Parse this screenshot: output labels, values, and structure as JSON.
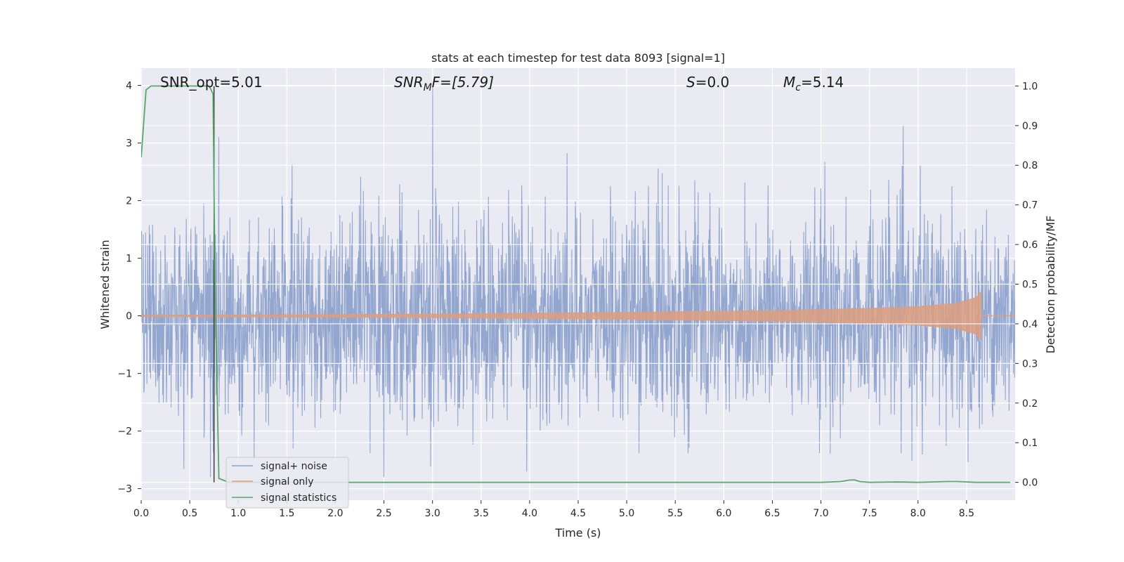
{
  "chart_data": {
    "type": "line",
    "title": "stats at each timestep for test data 8093 [signal=1]",
    "xlabel": "Time (s)",
    "ylabel": "Whitened strain",
    "ylabel_right": "Detection probability/MF",
    "xlim": [
      0.0,
      9.0
    ],
    "ylim": [
      -3.2,
      4.3
    ],
    "ylim_right": [
      -0.045,
      1.045
    ],
    "x_ticks": [
      "0.0",
      "0.5",
      "1.0",
      "1.5",
      "2.0",
      "2.5",
      "3.0",
      "3.5",
      "4.0",
      "4.5",
      "5.0",
      "5.5",
      "6.0",
      "6.5",
      "7.0",
      "7.5",
      "8.0",
      "8.5"
    ],
    "y_ticks": [
      "4",
      "3",
      "2",
      "1",
      "0",
      "−1",
      "−2",
      "−3"
    ],
    "y_ticks_right": [
      "1.0",
      "0.9",
      "0.8",
      "0.7",
      "0.6",
      "0.5",
      "0.4",
      "0.3",
      "0.2",
      "0.1",
      "0.0"
    ],
    "grid": true,
    "legend_position": "lower-left",
    "annotations": {
      "snr_opt": "SNR_opt=5.01",
      "snr_mf_main": "SNR",
      "snr_mf_sub": "M",
      "snr_mf_rest": "F=[5.79]",
      "s_main": "S",
      "s_rest": "=0.0",
      "mc_main": "M",
      "mc_sub": "c",
      "mc_rest": "=5.14"
    },
    "series": [
      {
        "name": "signal+ noise",
        "color": "#8da2cc",
        "description_values": {
          "x_range": [
            0.0,
            9.0
          ],
          "typical_range": [
            -1.5,
            1.3
          ],
          "extremes": [
            -2.8,
            4.0
          ]
        }
      },
      {
        "name": "signal only",
        "color": "#dd9e7f",
        "envelope": [
          [
            0.0,
            0.01
          ],
          [
            3.0,
            0.03
          ],
          [
            5.0,
            0.06
          ],
          [
            6.5,
            0.09
          ],
          [
            7.5,
            0.13
          ],
          [
            8.0,
            0.16
          ],
          [
            8.4,
            0.22
          ],
          [
            8.6,
            0.32
          ],
          [
            8.65,
            0.42
          ]
        ]
      },
      {
        "name": "signal statistics",
        "color": "#55a868",
        "axis": "right",
        "x": [
          0.0,
          0.05,
          0.1,
          0.2,
          0.4,
          0.6,
          0.7,
          0.74,
          0.76,
          0.8,
          0.9,
          1.5,
          3.0,
          5.0,
          6.0,
          7.0,
          7.2,
          7.3,
          7.35,
          7.4,
          7.5,
          7.8,
          8.0,
          8.3,
          8.4,
          8.6,
          8.95
        ],
        "y": [
          0.82,
          0.99,
          1.0,
          1.0,
          1.0,
          1.0,
          1.0,
          0.98,
          0.5,
          0.01,
          0.0,
          0.0,
          0.0,
          0.0,
          0.0,
          0.0,
          0.002,
          0.006,
          0.006,
          0.002,
          0.0,
          0.001,
          0.0,
          0.002,
          0.002,
          0.0,
          0.0
        ]
      }
    ],
    "vertical_marker_x": 0.75
  }
}
